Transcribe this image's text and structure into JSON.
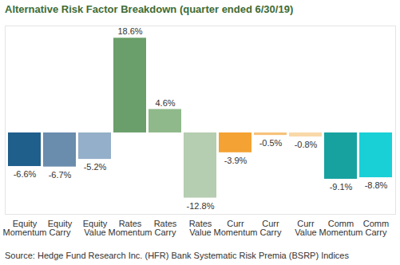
{
  "chart_data": {
    "type": "bar",
    "title": "Alternative Risk Factor Breakdown (quarter ended 6/30/19)",
    "caption": "Source: Hedge Fund Research Inc. (HFR) Bank Systematic Risk Premia (BSRP) Indices",
    "categories": [
      "Equity Momentum",
      "Equity Carry",
      "Equity Value",
      "Rates Momentum",
      "Rates Carry",
      "Rates Value",
      "Curr Momentum",
      "Curr Carry",
      "Curr Value",
      "Comm Momentum",
      "Comm Carry"
    ],
    "values": [
      -6.6,
      -6.7,
      -5.2,
      18.6,
      4.6,
      -12.8,
      -3.9,
      -0.5,
      -0.8,
      -9.1,
      -8.8
    ],
    "value_labels": [
      "-6.6%",
      "-6.7%",
      "-5.2%",
      "18.6%",
      "4.6%",
      "-12.8%",
      "-3.9%",
      "-0.5%",
      "-0.8%",
      "-9.1%",
      "-8.8%"
    ],
    "colors": [
      "#1f5f8b",
      "#6a8cad",
      "#94afc9",
      "#6a9e6a",
      "#8fb98a",
      "#b5cdb0",
      "#f4a233",
      "#f7c27a",
      "#f9d9a9",
      "#17a2a0",
      "#19d0d6"
    ],
    "ylim": [
      -16,
      21
    ],
    "yticks": [],
    "data_labels": true,
    "tick_labels": "x",
    "grid": false
  }
}
